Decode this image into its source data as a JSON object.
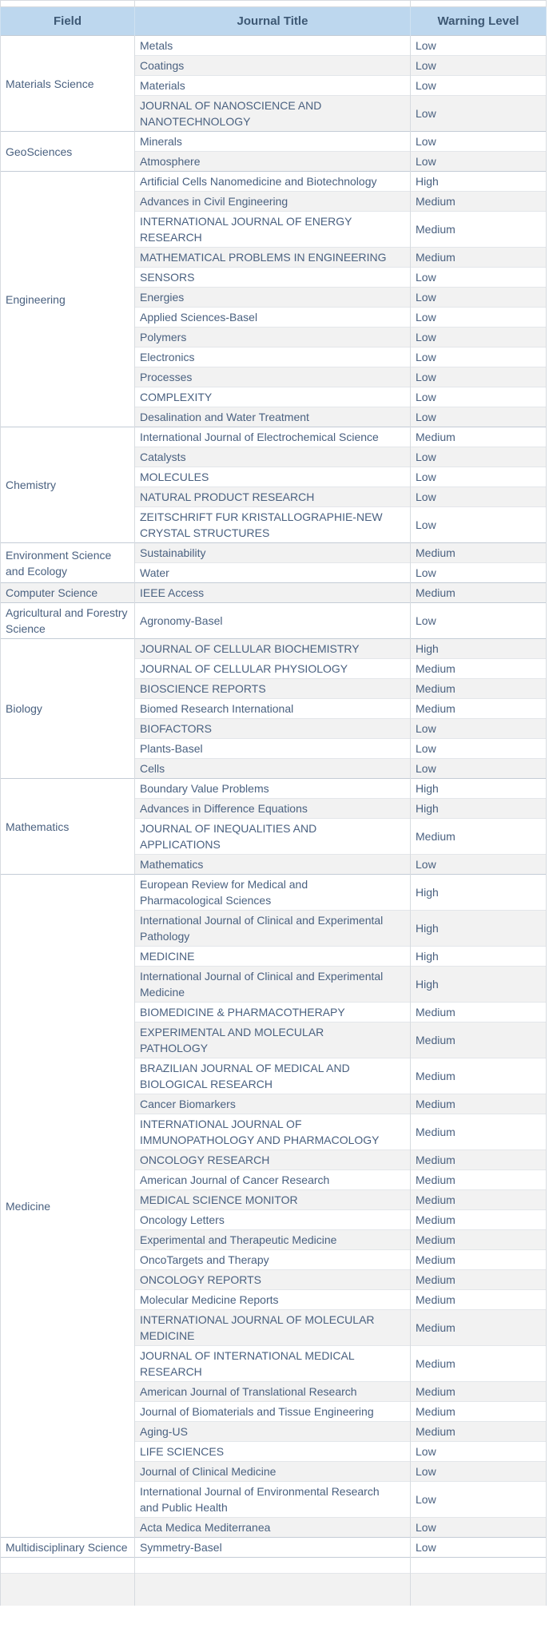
{
  "colors": {
    "header_bg": "#bdd7ee",
    "header_text": "#3d5874",
    "body_text": "#4a6180",
    "band": "#f2f2f2",
    "border": "#d7dbe0",
    "border_light": "#e3e6ea",
    "group_border": "#c4ccd6",
    "header_divider": "#cfe1f1"
  },
  "table": {
    "columns": [
      "Field",
      "Journal Title",
      "Warning Level"
    ],
    "groups": [
      {
        "field": "Materials Science",
        "journals": [
          {
            "title": "Metals",
            "level": "Low"
          },
          {
            "title": "Coatings",
            "level": "Low"
          },
          {
            "title": "Materials",
            "level": "Low"
          },
          {
            "title": "JOURNAL OF NANOSCIENCE AND NANOTECHNOLOGY",
            "level": "Low"
          }
        ]
      },
      {
        "field": "GeoSciences",
        "journals": [
          {
            "title": "Minerals",
            "level": "Low"
          },
          {
            "title": "Atmosphere",
            "level": "Low"
          }
        ]
      },
      {
        "field": "Engineering",
        "journals": [
          {
            "title": "Artificial Cells Nanomedicine and Biotechnology",
            "level": "High"
          },
          {
            "title": "Advances in Civil Engineering",
            "level": "Medium"
          },
          {
            "title": "INTERNATIONAL JOURNAL OF ENERGY RESEARCH",
            "level": "Medium"
          },
          {
            "title": "MATHEMATICAL PROBLEMS IN ENGINEERING",
            "level": "Medium"
          },
          {
            "title": "SENSORS",
            "level": "Low"
          },
          {
            "title": "Energies",
            "level": "Low"
          },
          {
            "title": "Applied Sciences-Basel",
            "level": "Low"
          },
          {
            "title": "Polymers",
            "level": "Low"
          },
          {
            "title": "Electronics",
            "level": "Low"
          },
          {
            "title": "Processes",
            "level": "Low"
          },
          {
            "title": "COMPLEXITY",
            "level": "Low"
          },
          {
            "title": "Desalination and Water Treatment",
            "level": "Low"
          }
        ]
      },
      {
        "field": "Chemistry",
        "journals": [
          {
            "title": "International Journal of Electrochemical Science",
            "level": "Medium"
          },
          {
            "title": "Catalysts",
            "level": "Low"
          },
          {
            "title": "MOLECULES",
            "level": "Low"
          },
          {
            "title": "NATURAL PRODUCT RESEARCH",
            "level": "Low"
          },
          {
            "title": "ZEITSCHRIFT FUR KRISTALLOGRAPHIE-NEW CRYSTAL STRUCTURES",
            "level": "Low"
          }
        ]
      },
      {
        "field": "Environment Science and Ecology",
        "journals": [
          {
            "title": "Sustainability",
            "level": "Medium"
          },
          {
            "title": "Water",
            "level": "Low"
          }
        ]
      },
      {
        "field": "Computer Science",
        "journals": [
          {
            "title": "IEEE Access",
            "level": "Medium"
          }
        ]
      },
      {
        "field": "Agricultural and Forestry Science",
        "journals": [
          {
            "title": "Agronomy-Basel",
            "level": "Low"
          }
        ]
      },
      {
        "field": "Biology",
        "journals": [
          {
            "title": "JOURNAL OF CELLULAR BIOCHEMISTRY",
            "level": "High"
          },
          {
            "title": "JOURNAL OF CELLULAR PHYSIOLOGY",
            "level": "Medium"
          },
          {
            "title": "BIOSCIENCE REPORTS",
            "level": "Medium"
          },
          {
            "title": "Biomed Research International",
            "level": "Medium"
          },
          {
            "title": "BIOFACTORS",
            "level": "Low"
          },
          {
            "title": "Plants-Basel",
            "level": "Low"
          },
          {
            "title": "Cells",
            "level": "Low"
          }
        ]
      },
      {
        "field": "Mathematics",
        "journals": [
          {
            "title": "Boundary Value Problems",
            "level": "High"
          },
          {
            "title": "Advances in Difference Equations",
            "level": "High"
          },
          {
            "title": "JOURNAL OF INEQUALITIES AND APPLICATIONS",
            "level": "Medium"
          },
          {
            "title": "Mathematics",
            "level": "Low"
          }
        ]
      },
      {
        "field": "Medicine",
        "journals": [
          {
            "title": "European Review for Medical and Pharmacological Sciences",
            "level": "High"
          },
          {
            "title": "International Journal of Clinical and Experimental Pathology",
            "level": "High"
          },
          {
            "title": "MEDICINE",
            "level": "High"
          },
          {
            "title": "International Journal of Clinical and Experimental Medicine",
            "level": "High"
          },
          {
            "title": "BIOMEDICINE & PHARMACOTHERAPY",
            "level": "Medium"
          },
          {
            "title": "EXPERIMENTAL AND MOLECULAR PATHOLOGY",
            "level": "Medium"
          },
          {
            "title": "BRAZILIAN JOURNAL OF MEDICAL AND BIOLOGICAL RESEARCH",
            "level": "Medium"
          },
          {
            "title": "Cancer Biomarkers",
            "level": "Medium"
          },
          {
            "title": "INTERNATIONAL JOURNAL OF IMMUNOPATHOLOGY AND PHARMACOLOGY",
            "level": "Medium"
          },
          {
            "title": "ONCOLOGY RESEARCH",
            "level": "Medium"
          },
          {
            "title": "American Journal of Cancer Research",
            "level": "Medium"
          },
          {
            "title": "MEDICAL SCIENCE MONITOR",
            "level": "Medium"
          },
          {
            "title": "Oncology Letters",
            "level": "Medium"
          },
          {
            "title": "Experimental and Therapeutic Medicine",
            "level": "Medium"
          },
          {
            "title": "OncoTargets and Therapy",
            "level": "Medium"
          },
          {
            "title": "ONCOLOGY REPORTS",
            "level": "Medium"
          },
          {
            "title": "Molecular Medicine Reports",
            "level": "Medium"
          },
          {
            "title": "INTERNATIONAL JOURNAL OF MOLECULAR MEDICINE",
            "level": "Medium"
          },
          {
            "title": "JOURNAL OF INTERNATIONAL MEDICAL RESEARCH",
            "level": "Medium"
          },
          {
            "title": "American Journal of Translational Research",
            "level": "Medium"
          },
          {
            "title": "Journal of Biomaterials and Tissue Engineering",
            "level": "Medium"
          },
          {
            "title": "Aging-US",
            "level": "Medium"
          },
          {
            "title": "LIFE SCIENCES",
            "level": "Low"
          },
          {
            "title": "Journal of Clinical Medicine",
            "level": "Low"
          },
          {
            "title": "International Journal of Environmental Research and Public Health",
            "level": "Low"
          },
          {
            "title": "Acta Medica Mediterranea",
            "level": "Low"
          }
        ]
      },
      {
        "field": "Multidisciplinary Science",
        "journals": [
          {
            "title": "Symmetry-Basel",
            "level": "Low"
          }
        ]
      }
    ]
  }
}
